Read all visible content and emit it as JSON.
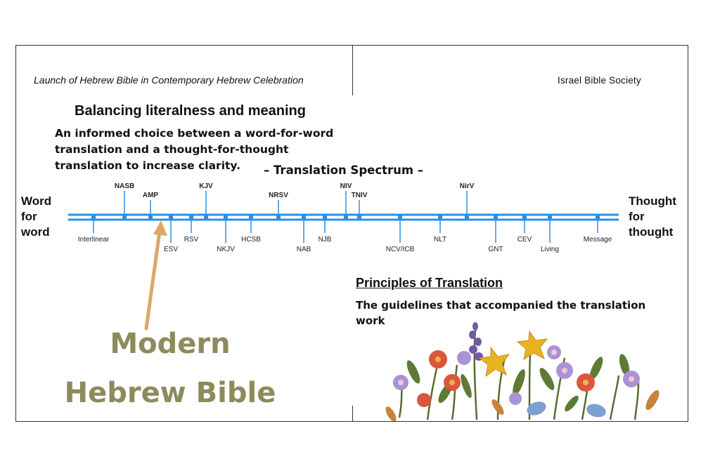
{
  "header": {
    "event_title": "Launch of Hebrew Bible in Contemporary Hebrew Celebration",
    "organization": "Israel Bible Society"
  },
  "balance": {
    "heading": "Balancing literalness and meaning",
    "description": "An informed choice between a word-for-word translation and a thought-for-thought translation to increase clarity."
  },
  "spectrum": {
    "title": "– Translation Spectrum –",
    "left_label": "Word\nfor\nword",
    "right_label": "Thought\nfor\nthought",
    "line_color": "#2b8fe6",
    "translations_above": [
      "NASB",
      "AMP",
      "KJV",
      "NRSV",
      "NIV",
      "TNIV",
      "NirV"
    ],
    "translations_below": [
      "Interlinear",
      "ESV",
      "RSV",
      "NKJV",
      "HCSB",
      "NAB",
      "NJB",
      "NCV/ICB",
      "NLT",
      "GNT",
      "CEV",
      "Living",
      "Message"
    ]
  },
  "principles": {
    "heading": "Principles of Translation",
    "description": "The guidelines that accompanied the translation work"
  },
  "modern": {
    "line1": "Modern",
    "line2": "Hebrew Bible",
    "color": "#8b8b5c",
    "arrow_color": "#dca76a"
  },
  "illustration": {
    "icon": "wildflowers-illustration"
  }
}
